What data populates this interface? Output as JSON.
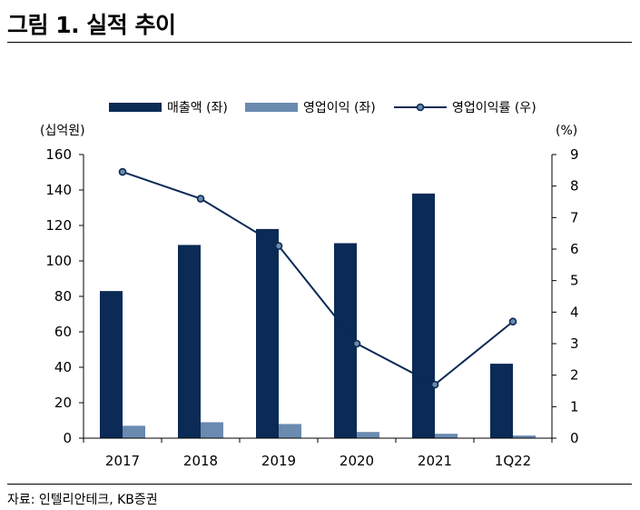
{
  "figure": {
    "title": "그림 1. 실적 추이",
    "source": "자료: 인텔리안테크, KB증권"
  },
  "chart_data": {
    "type": "bar",
    "categories": [
      "2017",
      "2018",
      "2019",
      "2020",
      "2021",
      "1Q22"
    ],
    "left_axis": {
      "unit": "(십억원)",
      "ylim": [
        0,
        160
      ],
      "ticks": [
        0,
        20,
        40,
        60,
        80,
        100,
        120,
        140,
        160
      ]
    },
    "right_axis": {
      "unit": "(%)",
      "ylim": [
        0,
        9
      ],
      "ticks": [
        0,
        1,
        2,
        3,
        4,
        5,
        6,
        7,
        8,
        9
      ]
    },
    "series": [
      {
        "name": "매출액 (좌)",
        "type": "bar",
        "axis": "left",
        "color": "#0b2a55",
        "values": [
          83,
          109,
          118,
          110,
          138,
          42
        ]
      },
      {
        "name": "영업이익 (좌)",
        "type": "bar",
        "axis": "left",
        "color": "#6b8ab0",
        "values": [
          7,
          9,
          8,
          3.5,
          2.5,
          1.5
        ]
      },
      {
        "name": "영업이익률 (우)",
        "type": "line",
        "axis": "right",
        "color": "#0b2a55",
        "values": [
          8.45,
          7.6,
          6.1,
          3.0,
          1.7,
          3.7
        ]
      }
    ],
    "grid": false,
    "legend": "top-center"
  }
}
